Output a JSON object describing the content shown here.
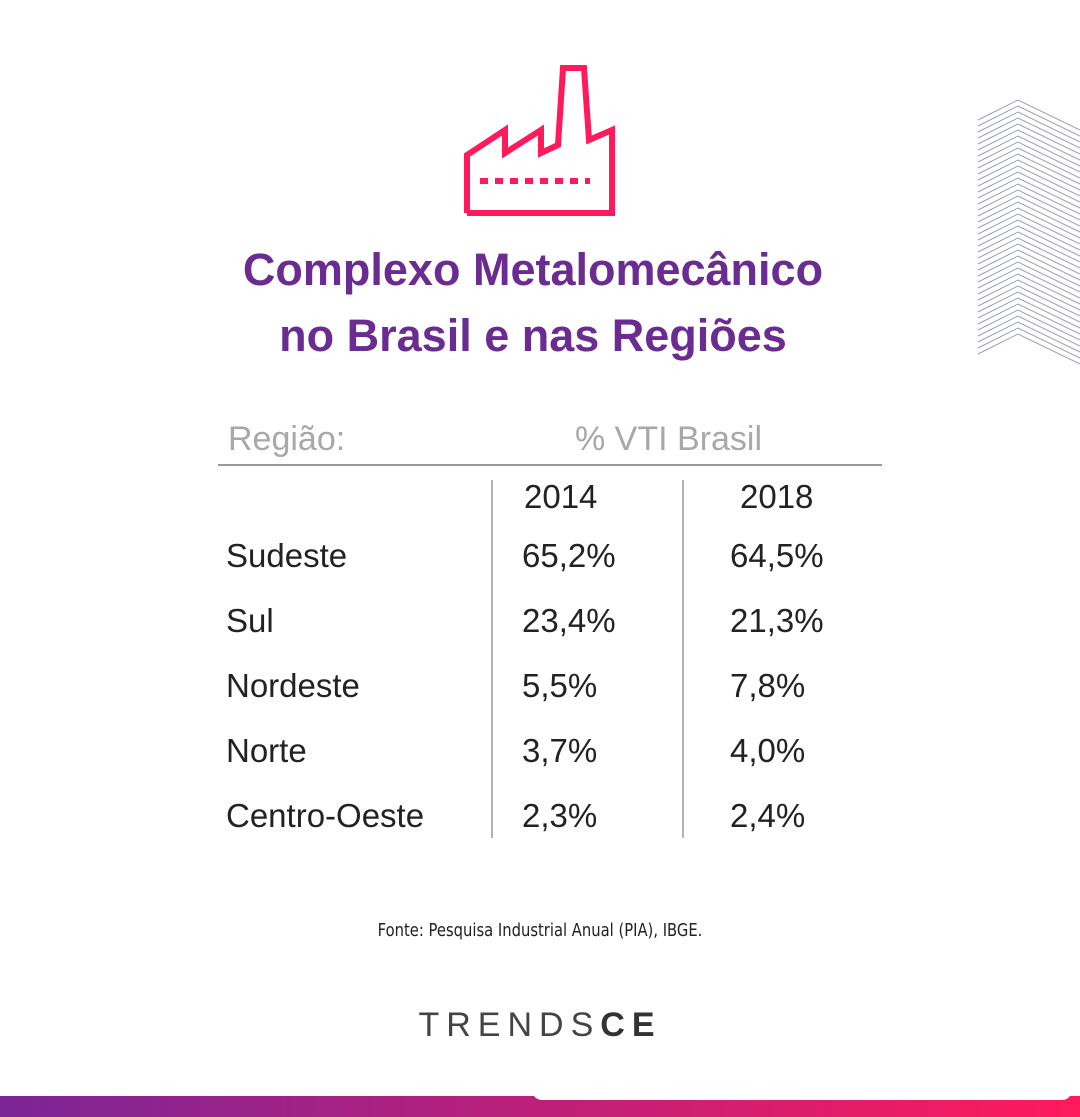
{
  "header": {
    "title": [
      "Complexo Metalomecânico",
      "no Brasil e nas Regiões"
    ]
  },
  "table": {
    "columns": [
      "Região:",
      "% VTI Brasil"
    ],
    "years": [
      "2014",
      "2018"
    ],
    "rows": [
      [
        "Sudeste",
        "65,2%",
        "64,5%"
      ],
      [
        "Sul",
        "23,4%",
        "21,3%"
      ],
      [
        "Nordeste",
        "5,5%",
        "7,8%"
      ],
      [
        "Norte",
        "3,7%",
        "4,0%"
      ],
      [
        "Centro-Oeste",
        "2,3%",
        "2,4%"
      ]
    ]
  },
  "footer": {
    "source": "Fonte: Pesquisa Industrial Anual (PIA), IBGE.",
    "logo": [
      "TRENDS",
      "CE"
    ]
  }
}
